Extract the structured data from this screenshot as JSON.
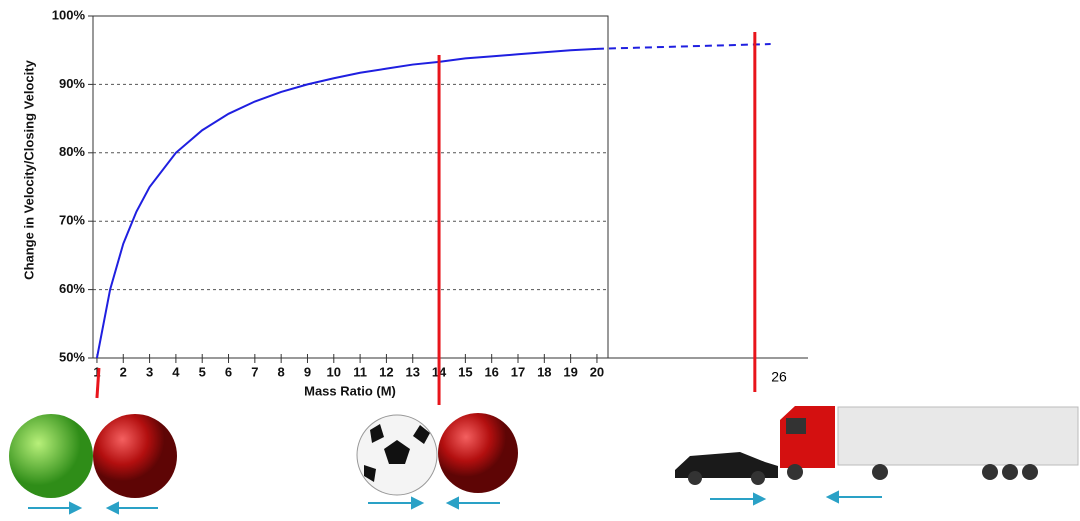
{
  "chart_data": {
    "type": "line",
    "x_label": "Mass Ratio (M)",
    "y_label": "Change in Velocity/Closing Velocity",
    "xlim": [
      0.85,
      20.42
    ],
    "ylim": [
      50,
      100
    ],
    "xticks": [
      1,
      2,
      3,
      4,
      5,
      6,
      7,
      8,
      9,
      10,
      11,
      12,
      13,
      14,
      15,
      16,
      17,
      18,
      19,
      20
    ],
    "yticks": [
      {
        "value": 50,
        "label": "50%"
      },
      {
        "value": 60,
        "label": "60%"
      },
      {
        "value": 70,
        "label": "70%"
      },
      {
        "value": 80,
        "label": "80%"
      },
      {
        "value": 90,
        "label": "90%"
      },
      {
        "value": 100,
        "label": "100%"
      }
    ],
    "grid": true,
    "series": [
      {
        "color": "#1f1fe0",
        "dashed": false,
        "x": [
          1,
          1.5,
          2,
          2.5,
          3,
          4,
          5,
          6,
          7,
          8,
          9,
          10,
          11,
          12,
          13,
          14,
          15,
          16,
          17,
          18,
          19,
          20
        ],
        "values": [
          50,
          60,
          66.7,
          71.4,
          75,
          80,
          83.3,
          85.7,
          87.5,
          88.9,
          90,
          90.9,
          91.7,
          92.3,
          92.9,
          93.3,
          93.8,
          94.1,
          94.4,
          94.7,
          95,
          95.2
        ]
      },
      {
        "color": "#1f1fe0",
        "dashed": true,
        "x": [
          20,
          26.6
        ],
        "values": [
          95.2,
          95.9
        ]
      }
    ],
    "markers": [
      1,
      14,
      26
    ],
    "marker_color": "#e8141b"
  }
}
